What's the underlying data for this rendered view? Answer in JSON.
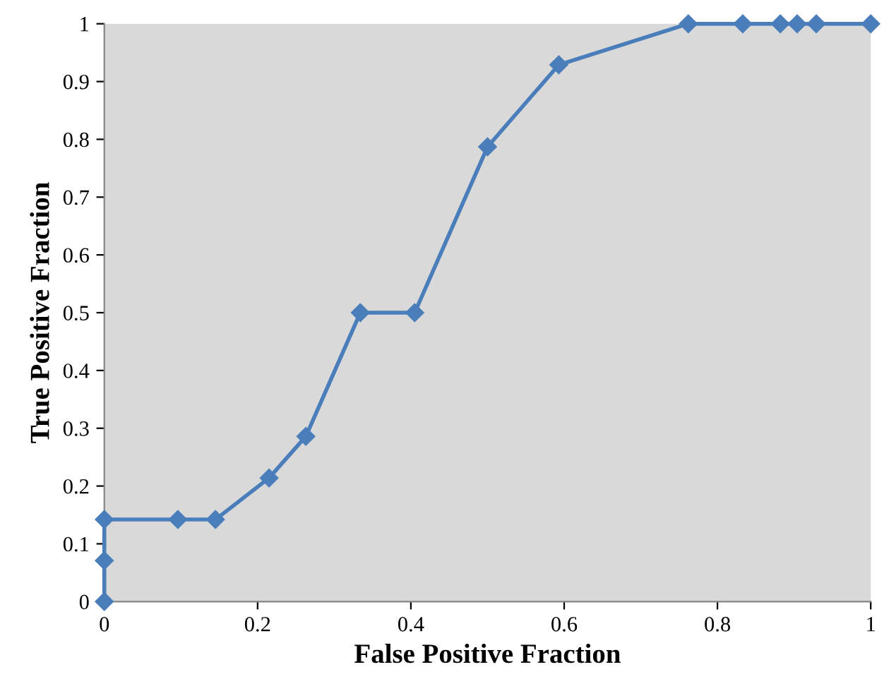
{
  "chart_data": {
    "type": "line",
    "xlabel": "False Positive Fraction",
    "ylabel": "True Positive Fraction",
    "x": [
      0,
      0,
      0,
      0.096,
      0.145,
      0.215,
      0.263,
      0.334,
      0.405,
      0.5,
      0.593,
      0.762,
      0.833,
      0.882,
      0.904,
      0.929,
      1
    ],
    "series": [
      {
        "color": "#4a7ebb",
        "values": [
          0,
          0.071,
          0.142,
          0.142,
          0.142,
          0.214,
          0.286,
          0.5,
          0.5,
          0.787,
          0.929,
          1,
          1,
          1,
          1,
          1,
          1
        ]
      }
    ],
    "xlim": [
      0,
      1
    ],
    "ylim": [
      0,
      1
    ],
    "xticks": [
      0,
      0.2,
      0.4,
      0.6,
      0.8,
      1
    ],
    "yticks": [
      0,
      0.1,
      0.2,
      0.3,
      0.4,
      0.5,
      0.6,
      0.7,
      0.8,
      0.9,
      1
    ],
    "marker": "diamond",
    "grid": false
  }
}
